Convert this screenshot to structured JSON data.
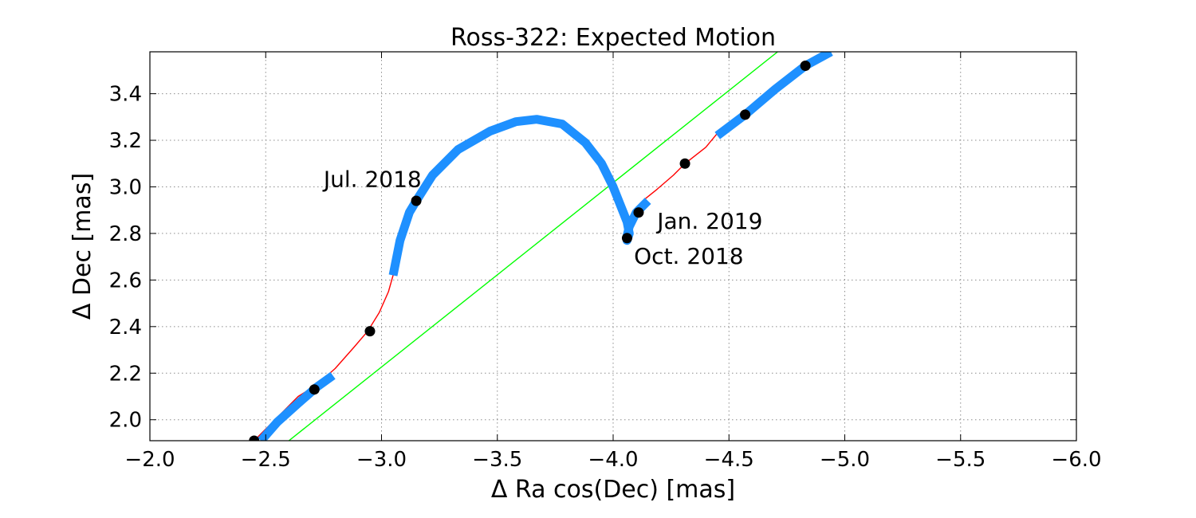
{
  "chart_data": {
    "type": "line",
    "title": "Ross-322: Expected Motion",
    "xlabel": "Δ Ra cos(Dec) [mas]",
    "ylabel": "Δ Dec [mas]",
    "xlim": [
      -2.0,
      -6.0
    ],
    "ylim": [
      1.91,
      3.58
    ],
    "x_inverted": true,
    "grid": true,
    "x_ticks": [
      -2.0,
      -2.5,
      -3.0,
      -3.5,
      -4.0,
      -4.5,
      -5.0,
      -5.5,
      -6.0
    ],
    "x_tick_labels": [
      "−2.0",
      "−2.5",
      "−3.0",
      "−3.5",
      "−4.0",
      "−4.5",
      "−5.0",
      "−5.5",
      "−6.0"
    ],
    "y_ticks": [
      2.0,
      2.2,
      2.4,
      2.6,
      2.8,
      3.0,
      3.2,
      3.4
    ],
    "y_tick_labels": [
      "2.0",
      "2.2",
      "2.4",
      "2.6",
      "2.8",
      "3.0",
      "3.2",
      "3.4"
    ],
    "series": [
      {
        "role": "linear-motion",
        "color": "#00ff00",
        "x": [
          -2.6,
          -4.71
        ],
        "y": [
          1.91,
          3.58
        ]
      },
      {
        "role": "parallax-path",
        "color": "#ff0000",
        "x": [
          -2.45,
          -2.55,
          -2.64,
          -2.72,
          -2.8,
          -2.88,
          -2.94,
          -2.99,
          -3.03,
          -3.05,
          -3.08,
          -3.12,
          -3.15,
          -3.22,
          -3.33,
          -3.47,
          -3.58,
          -3.67,
          -3.78,
          -3.88,
          -3.95,
          -4.0,
          -4.04,
          -4.06,
          -4.07,
          -4.06,
          -4.06,
          -4.07,
          -4.1,
          -4.14,
          -4.19,
          -4.26,
          -4.31,
          -4.4,
          -4.45,
          -4.57,
          -4.7,
          -4.83,
          -4.92
        ],
        "y": [
          1.91,
          2.01,
          2.1,
          2.15,
          2.22,
          2.31,
          2.38,
          2.46,
          2.55,
          2.62,
          2.77,
          2.89,
          2.94,
          3.05,
          3.16,
          3.24,
          3.28,
          3.29,
          3.27,
          3.19,
          3.1,
          3.0,
          2.9,
          2.85,
          2.8,
          2.78,
          2.77,
          2.81,
          2.89,
          2.95,
          2.99,
          3.05,
          3.1,
          3.17,
          3.23,
          3.31,
          3.42,
          3.52,
          3.58
        ]
      }
    ],
    "observable_segments": {
      "color": "#1e90ff",
      "segments": [
        {
          "x": [
            -2.48,
            -2.55,
            -2.64,
            -2.72,
            -2.79
          ],
          "y": [
            1.91,
            1.99,
            2.07,
            2.14,
            2.19
          ]
        },
        {
          "x": [
            -3.05,
            -3.08,
            -3.12,
            -3.15,
            -3.22,
            -3.33,
            -3.47,
            -3.58,
            -3.67,
            -3.78,
            -3.88,
            -3.95,
            -4.0,
            -4.04,
            -4.06,
            -4.07,
            -4.06,
            -4.06,
            -4.07,
            -4.1,
            -4.15
          ],
          "y": [
            2.62,
            2.77,
            2.89,
            2.94,
            3.05,
            3.16,
            3.24,
            3.28,
            3.29,
            3.27,
            3.19,
            3.1,
            3.0,
            2.9,
            2.85,
            2.8,
            2.77,
            2.79,
            2.83,
            2.89,
            2.94
          ]
        },
        {
          "x": [
            -4.45,
            -4.57,
            -4.7,
            -4.83,
            -4.94
          ],
          "y": [
            3.22,
            3.31,
            3.42,
            3.52,
            3.58
          ]
        }
      ]
    },
    "epoch_markers": {
      "color": "#000000",
      "x": [
        -2.45,
        -2.71,
        -2.95,
        -3.15,
        -4.06,
        -4.11,
        -4.31,
        -4.57,
        -4.83
      ],
      "y": [
        1.91,
        2.13,
        2.38,
        2.94,
        2.78,
        2.89,
        3.1,
        3.31,
        3.52
      ]
    },
    "annotations": [
      {
        "text": "Jul. 2018",
        "x": -2.75,
        "y": 3.0
      },
      {
        "text": "Oct. 2018",
        "x": -4.09,
        "y": 2.67
      },
      {
        "text": "Jan. 2019",
        "x": -4.19,
        "y": 2.82
      }
    ]
  }
}
